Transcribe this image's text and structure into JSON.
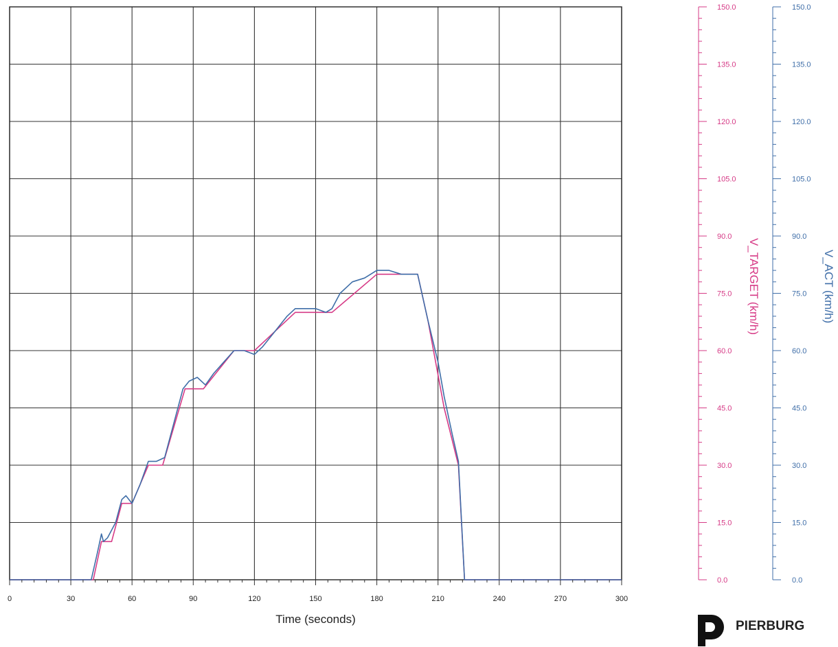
{
  "chart_data": {
    "type": "line",
    "xlabel": "Time (seconds)",
    "xlim": [
      0,
      300
    ],
    "x_ticks": [
      "0",
      "30",
      "60",
      "90",
      "120",
      "150",
      "180",
      "210",
      "240",
      "270",
      "300"
    ],
    "ylim": [
      0,
      150
    ],
    "grid": true,
    "y_axes": [
      {
        "label": "V_TARGET (km/h)",
        "color": "#d63a86",
        "ticks": [
          "0.0",
          "15.0",
          "30.0",
          "45.0",
          "60.0",
          "75.0",
          "90.0",
          "105.0",
          "120.0",
          "135.0",
          "150.0"
        ]
      },
      {
        "label": "V_ACT (km/h)",
        "color": "#3f6ea8",
        "ticks": [
          "0.0",
          "15.0",
          "30.0",
          "45.0",
          "60.0",
          "75.0",
          "90.0",
          "105.0",
          "120.0",
          "135.0",
          "150.0"
        ]
      }
    ],
    "series": [
      {
        "name": "V_TARGET",
        "color": "#d63a86",
        "x": [
          0,
          41,
          45,
          48,
          50,
          55,
          60,
          68,
          75,
          86,
          95,
          110,
          120,
          140,
          158,
          180,
          200,
          205,
          213,
          220,
          223,
          300
        ],
        "y": [
          0,
          0,
          10,
          10,
          10,
          20,
          20,
          30,
          30,
          50,
          50,
          60,
          60,
          70,
          70,
          80,
          80,
          68,
          45,
          30,
          0,
          0
        ]
      },
      {
        "name": "V_ACT",
        "color": "#3f6ea8",
        "x": [
          0,
          40,
          43,
          45,
          46,
          48,
          50,
          52,
          55,
          57,
          60,
          64,
          68,
          72,
          76,
          80,
          85,
          88,
          92,
          96,
          100,
          105,
          110,
          115,
          120,
          124,
          130,
          136,
          140,
          145,
          150,
          155,
          158,
          162,
          168,
          174,
          180,
          186,
          192,
          200,
          205,
          210,
          213,
          217,
          220,
          223,
          300
        ],
        "y": [
          0,
          0,
          7,
          12,
          10,
          11,
          13,
          15,
          21,
          22,
          20,
          25,
          31,
          31,
          32,
          40,
          50,
          52,
          53,
          51,
          54,
          57,
          60,
          60,
          59,
          61,
          65,
          69,
          71,
          71,
          71,
          70,
          71,
          75,
          78,
          79,
          81,
          81,
          80,
          80,
          68,
          57,
          48,
          38,
          31,
          0,
          0
        ]
      }
    ]
  },
  "brand": {
    "name": "PIERBURG"
  }
}
